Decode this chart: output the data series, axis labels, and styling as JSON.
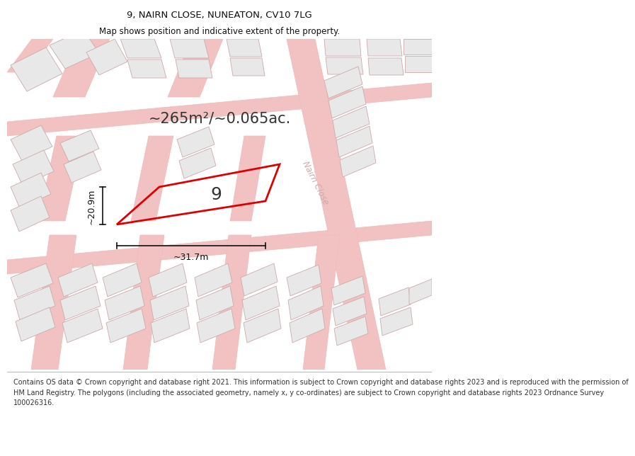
{
  "title": "9, NAIRN CLOSE, NUNEATON, CV10 7LG",
  "subtitle": "Map shows position and indicative extent of the property.",
  "footer": "Contains OS data © Crown copyright and database right 2021. This information is subject to Crown copyright and database rights 2023 and is reproduced with the permission of\nHM Land Registry. The polygons (including the associated geometry, namely x, y co-ordinates) are subject to Crown copyright and database rights 2023 Ordnance Survey\n100026316.",
  "map_bg": "#ffffff",
  "road_fill": "#f2c2c2",
  "road_edge": "#eebbbb",
  "building_fill": "#e8e8e8",
  "building_edge": "#ccaaaa",
  "highlight_color": "#dd0000",
  "dim_color": "#111111",
  "label_color": "#333333",
  "street_color": "#ccaaaa",
  "area_label": "~265m²/~0.065ac.",
  "width_label": "~31.7m",
  "height_label": "~20.9m",
  "plot_number": "9",
  "street_label": "Nairn Close",
  "title_fontsize": 9.5,
  "subtitle_fontsize": 8.5,
  "footer_fontsize": 7.0,
  "area_fontsize": 15,
  "number_fontsize": 18,
  "dim_fontsize": 9,
  "street_fontsize": 8.5
}
